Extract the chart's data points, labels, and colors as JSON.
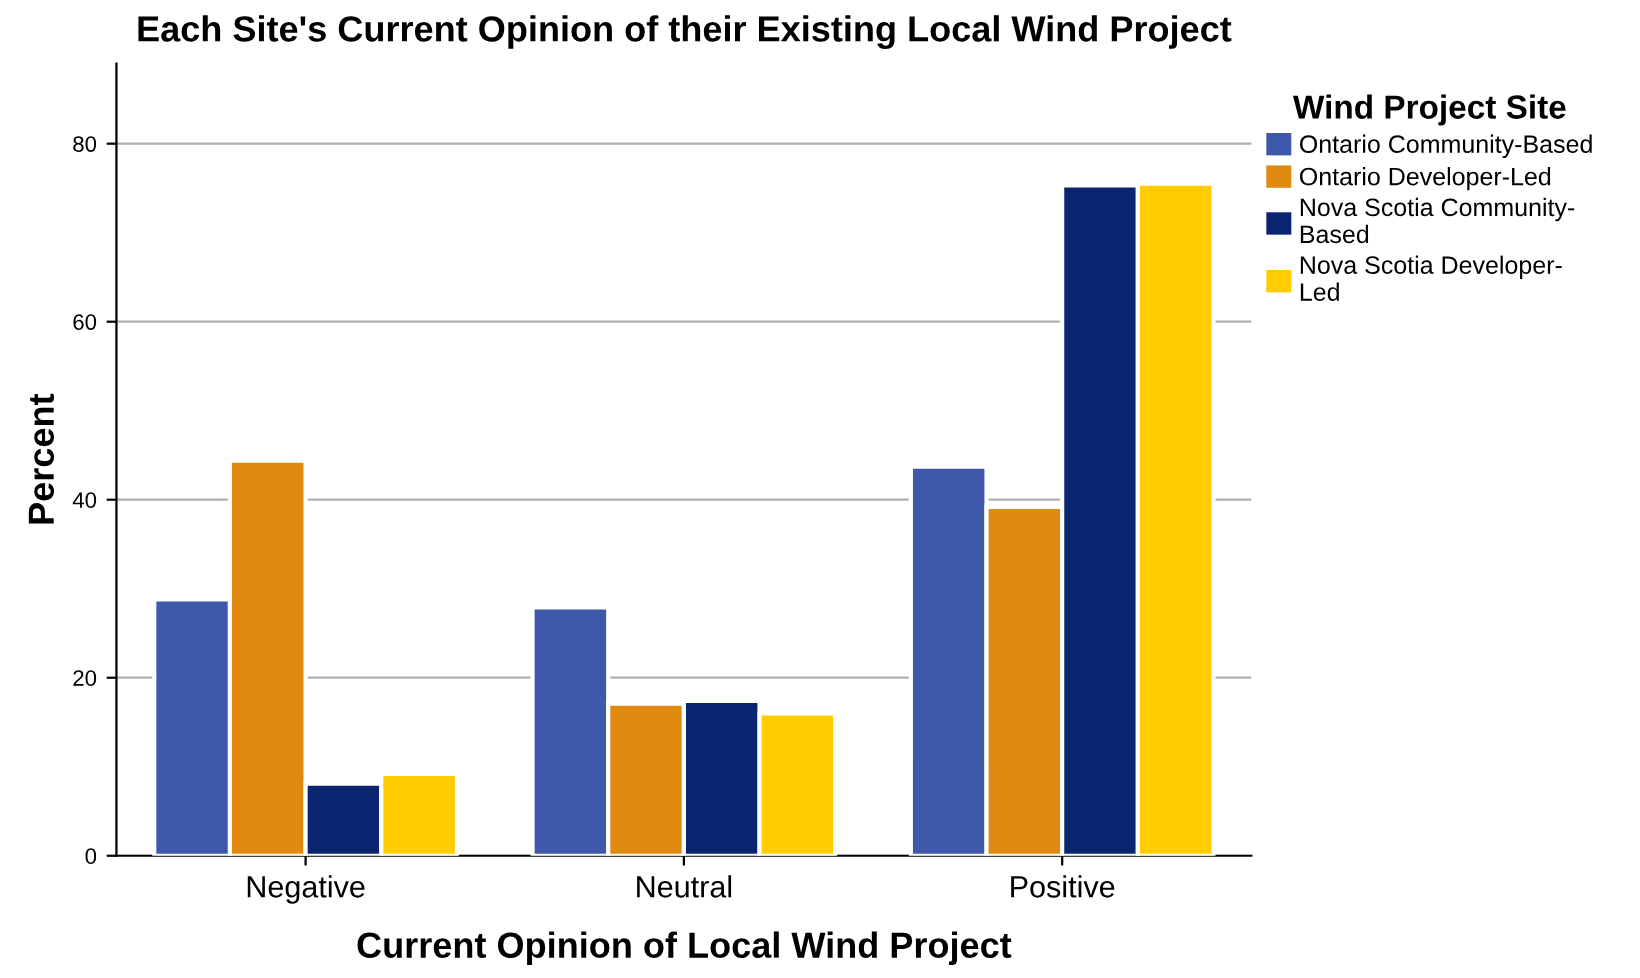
{
  "chart_data": {
    "type": "bar",
    "title": "Each Site's Current Opinion of their Existing Local Wind Project",
    "xlabel": "Current Opinion of Local Wind Project",
    "ylabel": "Percent",
    "legend_title": "Wind Project Site",
    "categories": [
      "Negative",
      "Neutral",
      "Positive"
    ],
    "series": [
      {
        "name": "Ontario Community-Based",
        "color": "#3e58ac",
        "values": [
          28.8,
          27.9,
          43.7
        ]
      },
      {
        "name": "Ontario Developer-Led",
        "color": "#e08a12",
        "values": [
          44.4,
          17.1,
          39.2
        ]
      },
      {
        "name": "Nova Scotia Community-Based",
        "color": "#0b2470",
        "values": [
          8.1,
          17.4,
          75.3
        ]
      },
      {
        "name": "Nova Scotia Developer-Led",
        "color": "#ffcc00",
        "values": [
          9.2,
          16.0,
          75.5
        ]
      }
    ],
    "ylim": [
      0,
      89
    ],
    "yticks": [
      0,
      20,
      40,
      60,
      80
    ],
    "grid": "y",
    "legend": "right"
  }
}
